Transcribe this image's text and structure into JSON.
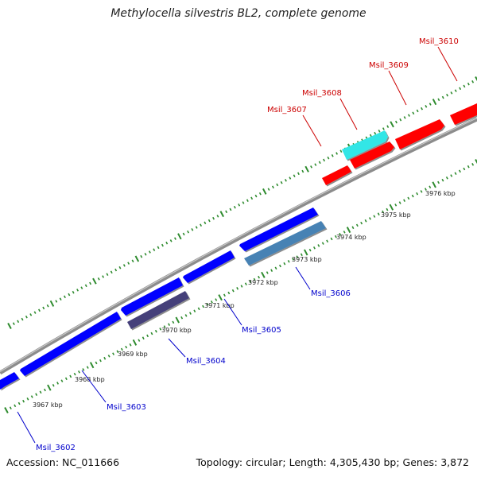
{
  "title": "Methylocella silvestris BL2, complete genome",
  "accession": "Accession: NC_011666",
  "summary": "Topology: circular; Length: 4,305,430 bp; Genes: 3,872",
  "colors": {
    "backbone": "#8c8c8c",
    "tick": "#2e8b2e",
    "gene_forward": "#ff0000",
    "gene_reverse": "#0000ff",
    "gene_highlight_forward": "#33e6e6",
    "gene_highlight_reverse_dark": "#45407a",
    "gene_highlight_reverse_light": "#4682b4",
    "label_forward": "#cc0000",
    "label_reverse": "#0000cc"
  },
  "scale_labels": [
    "3967 kbp",
    "3968 kbp",
    "3969 kbp",
    "3970 kbp",
    "3971 kbp",
    "3972 kbp",
    "3973 kbp",
    "3974 kbp",
    "3975 kbp",
    "3976 kbp"
  ],
  "gene_labels_reverse": [
    "Msil_3602",
    "Msil_3603",
    "Msil_3604",
    "Msil_3605",
    "Msil_3606"
  ],
  "gene_labels_forward": [
    "Msil_3607",
    "Msil_3608",
    "Msil_3609",
    "Msil_3610"
  ]
}
